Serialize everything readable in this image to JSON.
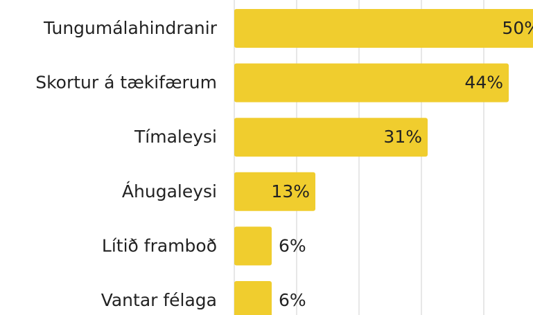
{
  "chart_data": {
    "type": "barh",
    "categories": [
      "Tungumálahindranir",
      "Skortur á tækifærum",
      "Tímaleysi",
      "Áhugaleysi",
      "Lítið framboð",
      "Vantar félaga"
    ],
    "values": [
      50,
      44,
      31,
      13,
      6,
      6
    ],
    "value_labels": [
      "50%",
      "44%",
      "31%",
      "13%",
      "6%",
      "6%"
    ],
    "color": "#f0cd2e",
    "xlim": [
      0,
      50
    ],
    "xticks": [
      0,
      10,
      20,
      30,
      40,
      50
    ],
    "grid": true
  }
}
